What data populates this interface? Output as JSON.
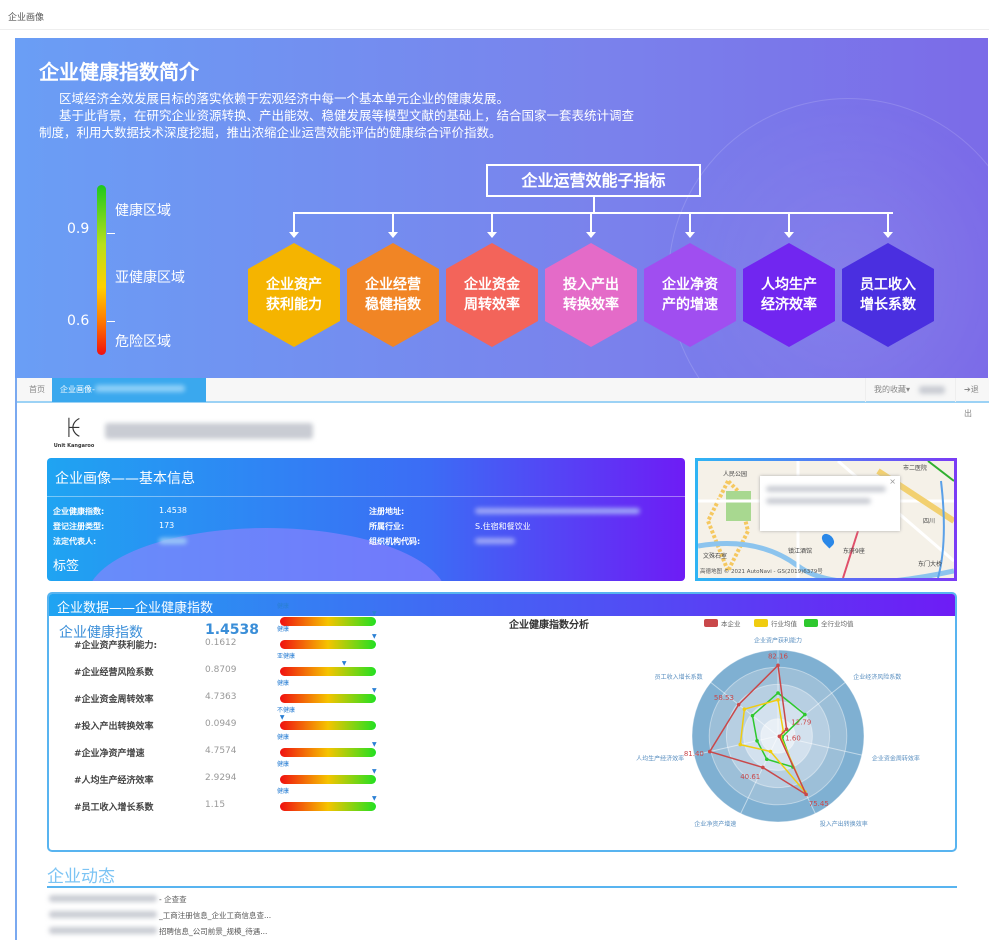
{
  "topbar": {
    "title": "企业画像"
  },
  "banner": {
    "title": "企业健康指数简介",
    "p1": "区域经济全效发展目标的落实依赖于宏观经济中每一个基本单元企业的健康发展。",
    "p2": "基于此背景，在研究企业资源转换、产出能效、稳健发展等模型文献的基础上，结合国家一套表统计调查",
    "p3": "制度，利用大数据技术深度挖掘，推出浓缩企业运营效能评估的健康综合评价指数。",
    "legend": {
      "t09": "0.9",
      "t06": "0.6",
      "healthy": "健康区域",
      "sub": "亚健康区域",
      "danger": "危险区域"
    },
    "sub_title": "企业运营效能子指标",
    "hexes": [
      {
        "l1": "企业资产",
        "l2": "获利能力",
        "color": "#f5b400"
      },
      {
        "l1": "企业经营",
        "l2": "稳健指数",
        "color": "#f18525"
      },
      {
        "l1": "企业资金",
        "l2": "周转效率",
        "color": "#f3645a"
      },
      {
        "l1": "投入产出",
        "l2": "转换效率",
        "color": "#e46bc8"
      },
      {
        "l1": "企业净资",
        "l2": "产的增速",
        "color": "#a04ef0"
      },
      {
        "l1": "人均生产",
        "l2": "经济效率",
        "color": "#7126f0"
      },
      {
        "l1": "员工收入",
        "l2": "增长系数",
        "color": "#4a2fe0"
      }
    ]
  },
  "app": {
    "tabs": {
      "home": "首页",
      "current": "企业画像-"
    },
    "right": {
      "fav": "我的收藏▾",
      "logout": "退出"
    },
    "logo": {
      "brand": "Unit Kangaroo"
    },
    "info": {
      "title": "企业画像——基本信息",
      "rows": [
        {
          "label": "企业健康指数:",
          "value": "1.4538",
          "label2": "注册地址:",
          "value2": ""
        },
        {
          "label": "登记注册类型:",
          "value": "173",
          "label2": "所属行业:",
          "value2": "S.住宿和餐饮业"
        },
        {
          "label": "法定代表人:",
          "value": "",
          "label2": "组织机构代码:",
          "value2": ""
        }
      ],
      "tags": "标签"
    },
    "map": {
      "labels": [
        "人民公园",
        "市二医院",
        "四川",
        "镇江酒馆",
        "东府9座",
        "文殊石室",
        "东门大桥"
      ],
      "credit": "高德地图 © 2021 AutoNavi - GS(2019)6379号"
    },
    "health": {
      "title": "企业数据——企业健康指数",
      "main": {
        "label": "企业健康指数",
        "value": "1.4538",
        "status": "健康",
        "level": 1.0
      },
      "items": [
        {
          "label": "#企业资产获利能力:",
          "value": "0.1612",
          "status": "健康",
          "level": 1.0
        },
        {
          "label": "#企业经营风险系数",
          "value": "0.8709",
          "status": "亚健康",
          "level": 0.68
        },
        {
          "label": "#企业资金周转效率",
          "value": "4.7363",
          "status": "健康",
          "level": 1.0
        },
        {
          "label": "#投入产出转换效率",
          "value": "0.0949",
          "status": "不健康",
          "level": 0.02
        },
        {
          "label": "#企业净资产增速",
          "value": "4.7574",
          "status": "健康",
          "level": 1.0
        },
        {
          "label": "#人均生产经济效率",
          "value": "2.9294",
          "status": "健康",
          "level": 1.0
        },
        {
          "label": "#员工收入增长系数",
          "value": "1.15",
          "status": "健康",
          "level": 1.0
        }
      ]
    },
    "news": {
      "title": "企业动态",
      "items": [
        "- 企查查",
        "_工商注册信息_企业工商信息查...",
        "招聘信息_公司前景_规模_待遇..."
      ]
    }
  },
  "chart_data": {
    "type": "radar",
    "title": "企业健康指数分析",
    "indicators": [
      "企业资产获利能力",
      "企业经济风险系数",
      "企业资金周转效率",
      "投入产出转换效率",
      "企业净资产增速",
      "人均生产经济效率",
      "员工收入增长系数"
    ],
    "max": 100,
    "legend_position": "top",
    "series": [
      {
        "name": "本企业",
        "color": "#c9484a",
        "values": [
          82.16,
          12.79,
          1.6,
          75.45,
          40.61,
          81.4,
          58.53
        ]
      },
      {
        "name": "行业均值",
        "color": "#f0cc10",
        "values": [
          42,
          8,
          3,
          72,
          20,
          45,
          50
        ]
      },
      {
        "name": "全行业均值",
        "color": "#2ec82e",
        "values": [
          50,
          40,
          5,
          40,
          30,
          25,
          38
        ]
      }
    ]
  }
}
